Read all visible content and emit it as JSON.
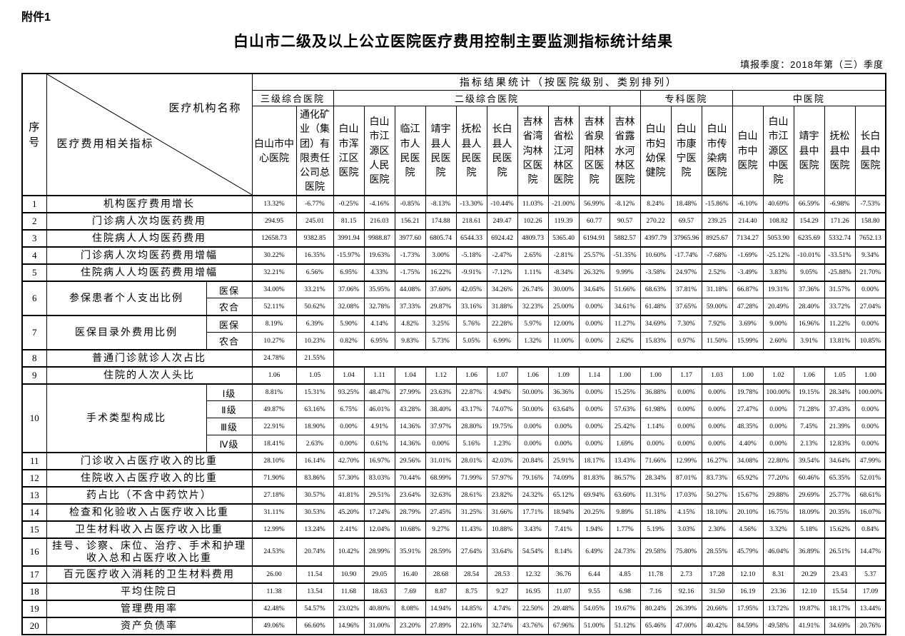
{
  "page": {
    "attachment_label": "附件1",
    "title": "白山市二级及以上公立医院医疗费用控制主要监测指标统计结果",
    "season_note": "填报季度：2018年第（三）季度"
  },
  "table": {
    "corner": {
      "serial": "序号",
      "top_right": "医疗机构名称",
      "bottom_left": "医疗费用相关指标"
    },
    "stats_header": "指标结果统计（按医院级别、类别排列）",
    "groups": [
      {
        "label": "三级综合医院",
        "span": 2
      },
      {
        "label": "二级综合医院",
        "span": 10
      },
      {
        "label": "专科医院",
        "span": 3
      },
      {
        "label": "中医院",
        "span": 5
      }
    ],
    "hospitals": [
      "白山市中心医院",
      "通化矿业（集团）有限责任公司总医院",
      "白山市浑江区医院",
      "白山市江源区人民医院",
      "临江市人民医院",
      "靖宇县人民医院",
      "抚松县人民医院",
      "长白县人民医院",
      "吉林省湾沟林区医院",
      "吉林省松江河林区医院",
      "吉林省泉阳林区医院",
      "吉林省露水河林区医院",
      "白山市妇幼保健院",
      "白山市康宁医院",
      "白山市传染病医院",
      "白山市中医院",
      "白山市江源区中医院",
      "靖宇县中医院",
      "抚松县中医院",
      "长白县中医院"
    ],
    "rows": [
      {
        "no": "1",
        "label": "机构医疗费用增长",
        "values": [
          "13.32%",
          "-6.77%",
          "-0.25%",
          "-4.16%",
          "-0.85%",
          "-8.13%",
          "-13.30%",
          "-10.44%",
          "11.03%",
          "-21.00%",
          "56.99%",
          "-8.12%",
          "8.24%",
          "18.48%",
          "-15.86%",
          "-6.10%",
          "40.69%",
          "66.59%",
          "-6.98%",
          "-7.53%"
        ]
      },
      {
        "no": "2",
        "label": "门诊病人次均医药费用",
        "values": [
          "294.95",
          "245.01",
          "81.15",
          "216.03",
          "156.21",
          "174.88",
          "218.61",
          "249.47",
          "102.26",
          "119.39",
          "60.77",
          "90.57",
          "270.22",
          "69.57",
          "239.25",
          "214.40",
          "108.82",
          "154.29",
          "171.26",
          "158.80"
        ]
      },
      {
        "no": "3",
        "label": "住院病人人均医药费用",
        "values": [
          "12658.73",
          "9382.85",
          "3991.94",
          "9988.87",
          "3977.60",
          "6805.74",
          "6544.33",
          "6924.42",
          "4809.73",
          "5365.40",
          "6194.91",
          "5882.57",
          "4397.79",
          "37965.96",
          "8925.67",
          "7134.27",
          "5053.90",
          "6235.69",
          "5332.74",
          "7652.13"
        ]
      },
      {
        "no": "4",
        "label": "门诊病人次均医药费用增幅",
        "values": [
          "30.22%",
          "16.35%",
          "-15.97%",
          "19.63%",
          "-1.73%",
          "3.00%",
          "-5.18%",
          "-2.47%",
          "2.65%",
          "-2.81%",
          "25.57%",
          "-51.35%",
          "10.60%",
          "-17.74%",
          "-7.68%",
          "-1.69%",
          "-25.12%",
          "-10.01%",
          "-33.51%",
          "9.34%"
        ]
      },
      {
        "no": "5",
        "label": "住院病人人均医药费用增幅",
        "values": [
          "32.21%",
          "6.56%",
          "6.95%",
          "4.33%",
          "-1.75%",
          "16.22%",
          "-9.91%",
          "-7.12%",
          "1.11%",
          "-8.34%",
          "26.32%",
          "9.99%",
          "-3.58%",
          "24.97%",
          "2.52%",
          "-3.49%",
          "3.83%",
          "9.05%",
          "-25.88%",
          "21.70%"
        ]
      },
      {
        "no": "6",
        "label": "参保患者个人支出比例",
        "subrows": [
          {
            "label": "医保",
            "values": [
              "34.00%",
              "33.21%",
              "37.06%",
              "35.95%",
              "44.08%",
              "37.60%",
              "42.05%",
              "34.26%",
              "26.74%",
              "30.00%",
              "34.64%",
              "51.66%",
              "68.63%",
              "37.81%",
              "31.18%",
              "66.87%",
              "19.31%",
              "37.36%",
              "31.57%",
              "0.00%"
            ]
          },
          {
            "label": "农合",
            "values": [
              "52.11%",
              "50.62%",
              "32.08%",
              "32.78%",
              "37.33%",
              "29.87%",
              "33.16%",
              "31.88%",
              "32.23%",
              "25.00%",
              "0.00%",
              "34.61%",
              "61.48%",
              "37.65%",
              "59.00%",
              "47.28%",
              "20.49%",
              "28.40%",
              "33.72%",
              "27.04%"
            ]
          }
        ]
      },
      {
        "no": "7",
        "label": "医保目录外费用比例",
        "subrows": [
          {
            "label": "医保",
            "values": [
              "8.19%",
              "6.39%",
              "5.90%",
              "4.14%",
              "4.82%",
              "3.25%",
              "5.76%",
              "22.28%",
              "5.97%",
              "12.00%",
              "0.00%",
              "11.27%",
              "34.69%",
              "7.30%",
              "7.92%",
              "3.69%",
              "9.00%",
              "16.96%",
              "11.22%",
              "0.00%"
            ]
          },
          {
            "label": "农合",
            "values": [
              "10.27%",
              "10.23%",
              "0.82%",
              "6.95%",
              "9.83%",
              "5.73%",
              "5.05%",
              "6.99%",
              "1.32%",
              "11.00%",
              "0.00%",
              "2.62%",
              "15.83%",
              "0.97%",
              "11.50%",
              "15.99%",
              "2.60%",
              "3.91%",
              "13.81%",
              "10.85%"
            ]
          }
        ]
      },
      {
        "no": "8",
        "label": "普通门诊就诊人次占比",
        "values": [
          "24.78%",
          "21.55%"
        ],
        "blank_span": 18
      },
      {
        "no": "9",
        "label": "住院的人次人头比",
        "values": [
          "1.06",
          "1.05",
          "1.04",
          "1.11",
          "1.04",
          "1.12",
          "1.06",
          "1.07",
          "1.06",
          "1.09",
          "1.14",
          "1.00",
          "1.00",
          "1.17",
          "1.03",
          "1.00",
          "1.02",
          "1.06",
          "1.05",
          "1.00"
        ]
      },
      {
        "no": "10",
        "label": "手术类型构成比",
        "subrows": [
          {
            "label": "Ⅰ级",
            "values": [
              "8.81%",
              "15.31%",
              "93.25%",
              "48.47%",
              "27.99%",
              "23.63%",
              "22.87%",
              "4.94%",
              "50.00%",
              "36.36%",
              "0.00%",
              "15.25%",
              "36.88%",
              "0.00%",
              "0.00%",
              "19.78%",
              "100.00%",
              "19.15%",
              "28.34%",
              "100.00%"
            ]
          },
          {
            "label": "Ⅱ级",
            "values": [
              "49.87%",
              "63.16%",
              "6.75%",
              "46.01%",
              "43.28%",
              "38.40%",
              "43.17%",
              "74.07%",
              "50.00%",
              "63.64%",
              "0.00%",
              "57.63%",
              "61.98%",
              "0.00%",
              "0.00%",
              "27.47%",
              "0.00%",
              "71.28%",
              "37.43%",
              "0.00%"
            ]
          },
          {
            "label": "Ⅲ级",
            "values": [
              "22.91%",
              "18.90%",
              "0.00%",
              "4.91%",
              "14.36%",
              "37.97%",
              "28.80%",
              "19.75%",
              "0.00%",
              "0.00%",
              "0.00%",
              "25.42%",
              "1.14%",
              "0.00%",
              "0.00%",
              "48.35%",
              "0.00%",
              "7.45%",
              "21.39%",
              "0.00%"
            ]
          },
          {
            "label": "Ⅳ级",
            "values": [
              "18.41%",
              "2.63%",
              "0.00%",
              "0.61%",
              "14.36%",
              "0.00%",
              "5.16%",
              "1.23%",
              "0.00%",
              "0.00%",
              "0.00%",
              "1.69%",
              "0.00%",
              "0.00%",
              "0.00%",
              "4.40%",
              "0.00%",
              "2.13%",
              "12.83%",
              "0.00%"
            ]
          }
        ]
      },
      {
        "no": "11",
        "label": "门诊收入占医疗收入的比重",
        "values": [
          "28.10%",
          "16.14%",
          "42.70%",
          "16.97%",
          "29.56%",
          "31.01%",
          "28.01%",
          "42.03%",
          "20.84%",
          "25.91%",
          "18.17%",
          "13.43%",
          "71.66%",
          "12.99%",
          "16.27%",
          "34.08%",
          "22.80%",
          "39.54%",
          "34.64%",
          "47.99%"
        ]
      },
      {
        "no": "12",
        "label": "住院收入占医疗收入的比重",
        "values": [
          "71.90%",
          "83.86%",
          "57.30%",
          "83.03%",
          "70.44%",
          "68.99%",
          "71.99%",
          "57.97%",
          "79.16%",
          "74.09%",
          "81.83%",
          "86.57%",
          "28.34%",
          "87.01%",
          "83.73%",
          "65.92%",
          "77.20%",
          "60.46%",
          "65.35%",
          "52.01%"
        ]
      },
      {
        "no": "13",
        "label": "药占比（不含中药饮片）",
        "values": [
          "27.18%",
          "30.57%",
          "41.81%",
          "29.51%",
          "23.64%",
          "32.63%",
          "28.61%",
          "23.82%",
          "24.32%",
          "65.12%",
          "69.94%",
          "63.60%",
          "11.31%",
          "17.03%",
          "50.27%",
          "15.67%",
          "29.88%",
          "29.69%",
          "25.77%",
          "68.61%"
        ]
      },
      {
        "no": "14",
        "label": "检查和化验收入占医疗收入比重",
        "values": [
          "31.11%",
          "30.53%",
          "45.20%",
          "17.24%",
          "28.79%",
          "27.45%",
          "31.25%",
          "31.66%",
          "17.71%",
          "18.94%",
          "20.25%",
          "9.89%",
          "51.18%",
          "4.15%",
          "18.10%",
          "20.10%",
          "16.75%",
          "18.09%",
          "20.35%",
          "16.07%"
        ]
      },
      {
        "no": "15",
        "label": "卫生材料收入占医疗收入比重",
        "values": [
          "12.99%",
          "13.24%",
          "2.41%",
          "12.04%",
          "10.68%",
          "9.27%",
          "11.43%",
          "10.88%",
          "3.43%",
          "7.41%",
          "1.94%",
          "1.77%",
          "5.19%",
          "3.03%",
          "2.30%",
          "4.56%",
          "3.32%",
          "5.18%",
          "15.62%",
          "0.84%"
        ]
      },
      {
        "no": "16",
        "label": "挂号、诊察、床位、治疗、手术和护理收入总和占医疗收入比重",
        "values": [
          "24.53%",
          "20.74%",
          "10.42%",
          "28.99%",
          "35.91%",
          "28.59%",
          "27.64%",
          "33.64%",
          "54.54%",
          "8.14%",
          "6.49%",
          "24.73%",
          "29.58%",
          "75.80%",
          "28.55%",
          "45.79%",
          "46.04%",
          "36.89%",
          "26.51%",
          "14.47%"
        ]
      },
      {
        "no": "17",
        "label": "百元医疗收入消耗的卫生材料费用",
        "values": [
          "26.00",
          "11.54",
          "10.90",
          "29.05",
          "16.40",
          "28.68",
          "28.54",
          "28.53",
          "12.32",
          "36.76",
          "6.44",
          "4.85",
          "11.78",
          "2.73",
          "17.28",
          "12.10",
          "8.31",
          "20.29",
          "23.43",
          "5.37"
        ]
      },
      {
        "no": "18",
        "label": "平均住院日",
        "values": [
          "11.38",
          "13.54",
          "11.68",
          "18.63",
          "7.69",
          "8.87",
          "8.75",
          "9.27",
          "16.95",
          "11.07",
          "9.55",
          "6.98",
          "7.16",
          "92.16",
          "31.50",
          "16.19",
          "23.36",
          "12.10",
          "15.54",
          "17.09"
        ]
      },
      {
        "no": "19",
        "label": "管理费用率",
        "values": [
          "42.48%",
          "54.57%",
          "23.02%",
          "40.80%",
          "8.08%",
          "14.94%",
          "14.85%",
          "4.74%",
          "22.50%",
          "29.48%",
          "54.05%",
          "19.67%",
          "80.24%",
          "26.39%",
          "20.66%",
          "17.95%",
          "13.72%",
          "19.87%",
          "18.17%",
          "13.44%"
        ]
      },
      {
        "no": "20",
        "label": "资产负债率",
        "values": [
          "49.06%",
          "66.60%",
          "14.96%",
          "31.00%",
          "23.20%",
          "27.89%",
          "22.16%",
          "32.74%",
          "43.76%",
          "67.96%",
          "51.00%",
          "51.12%",
          "65.46%",
          "47.00%",
          "40.42%",
          "84.59%",
          "49.58%",
          "41.91%",
          "34.69%",
          "20.76%"
        ]
      }
    ]
  }
}
